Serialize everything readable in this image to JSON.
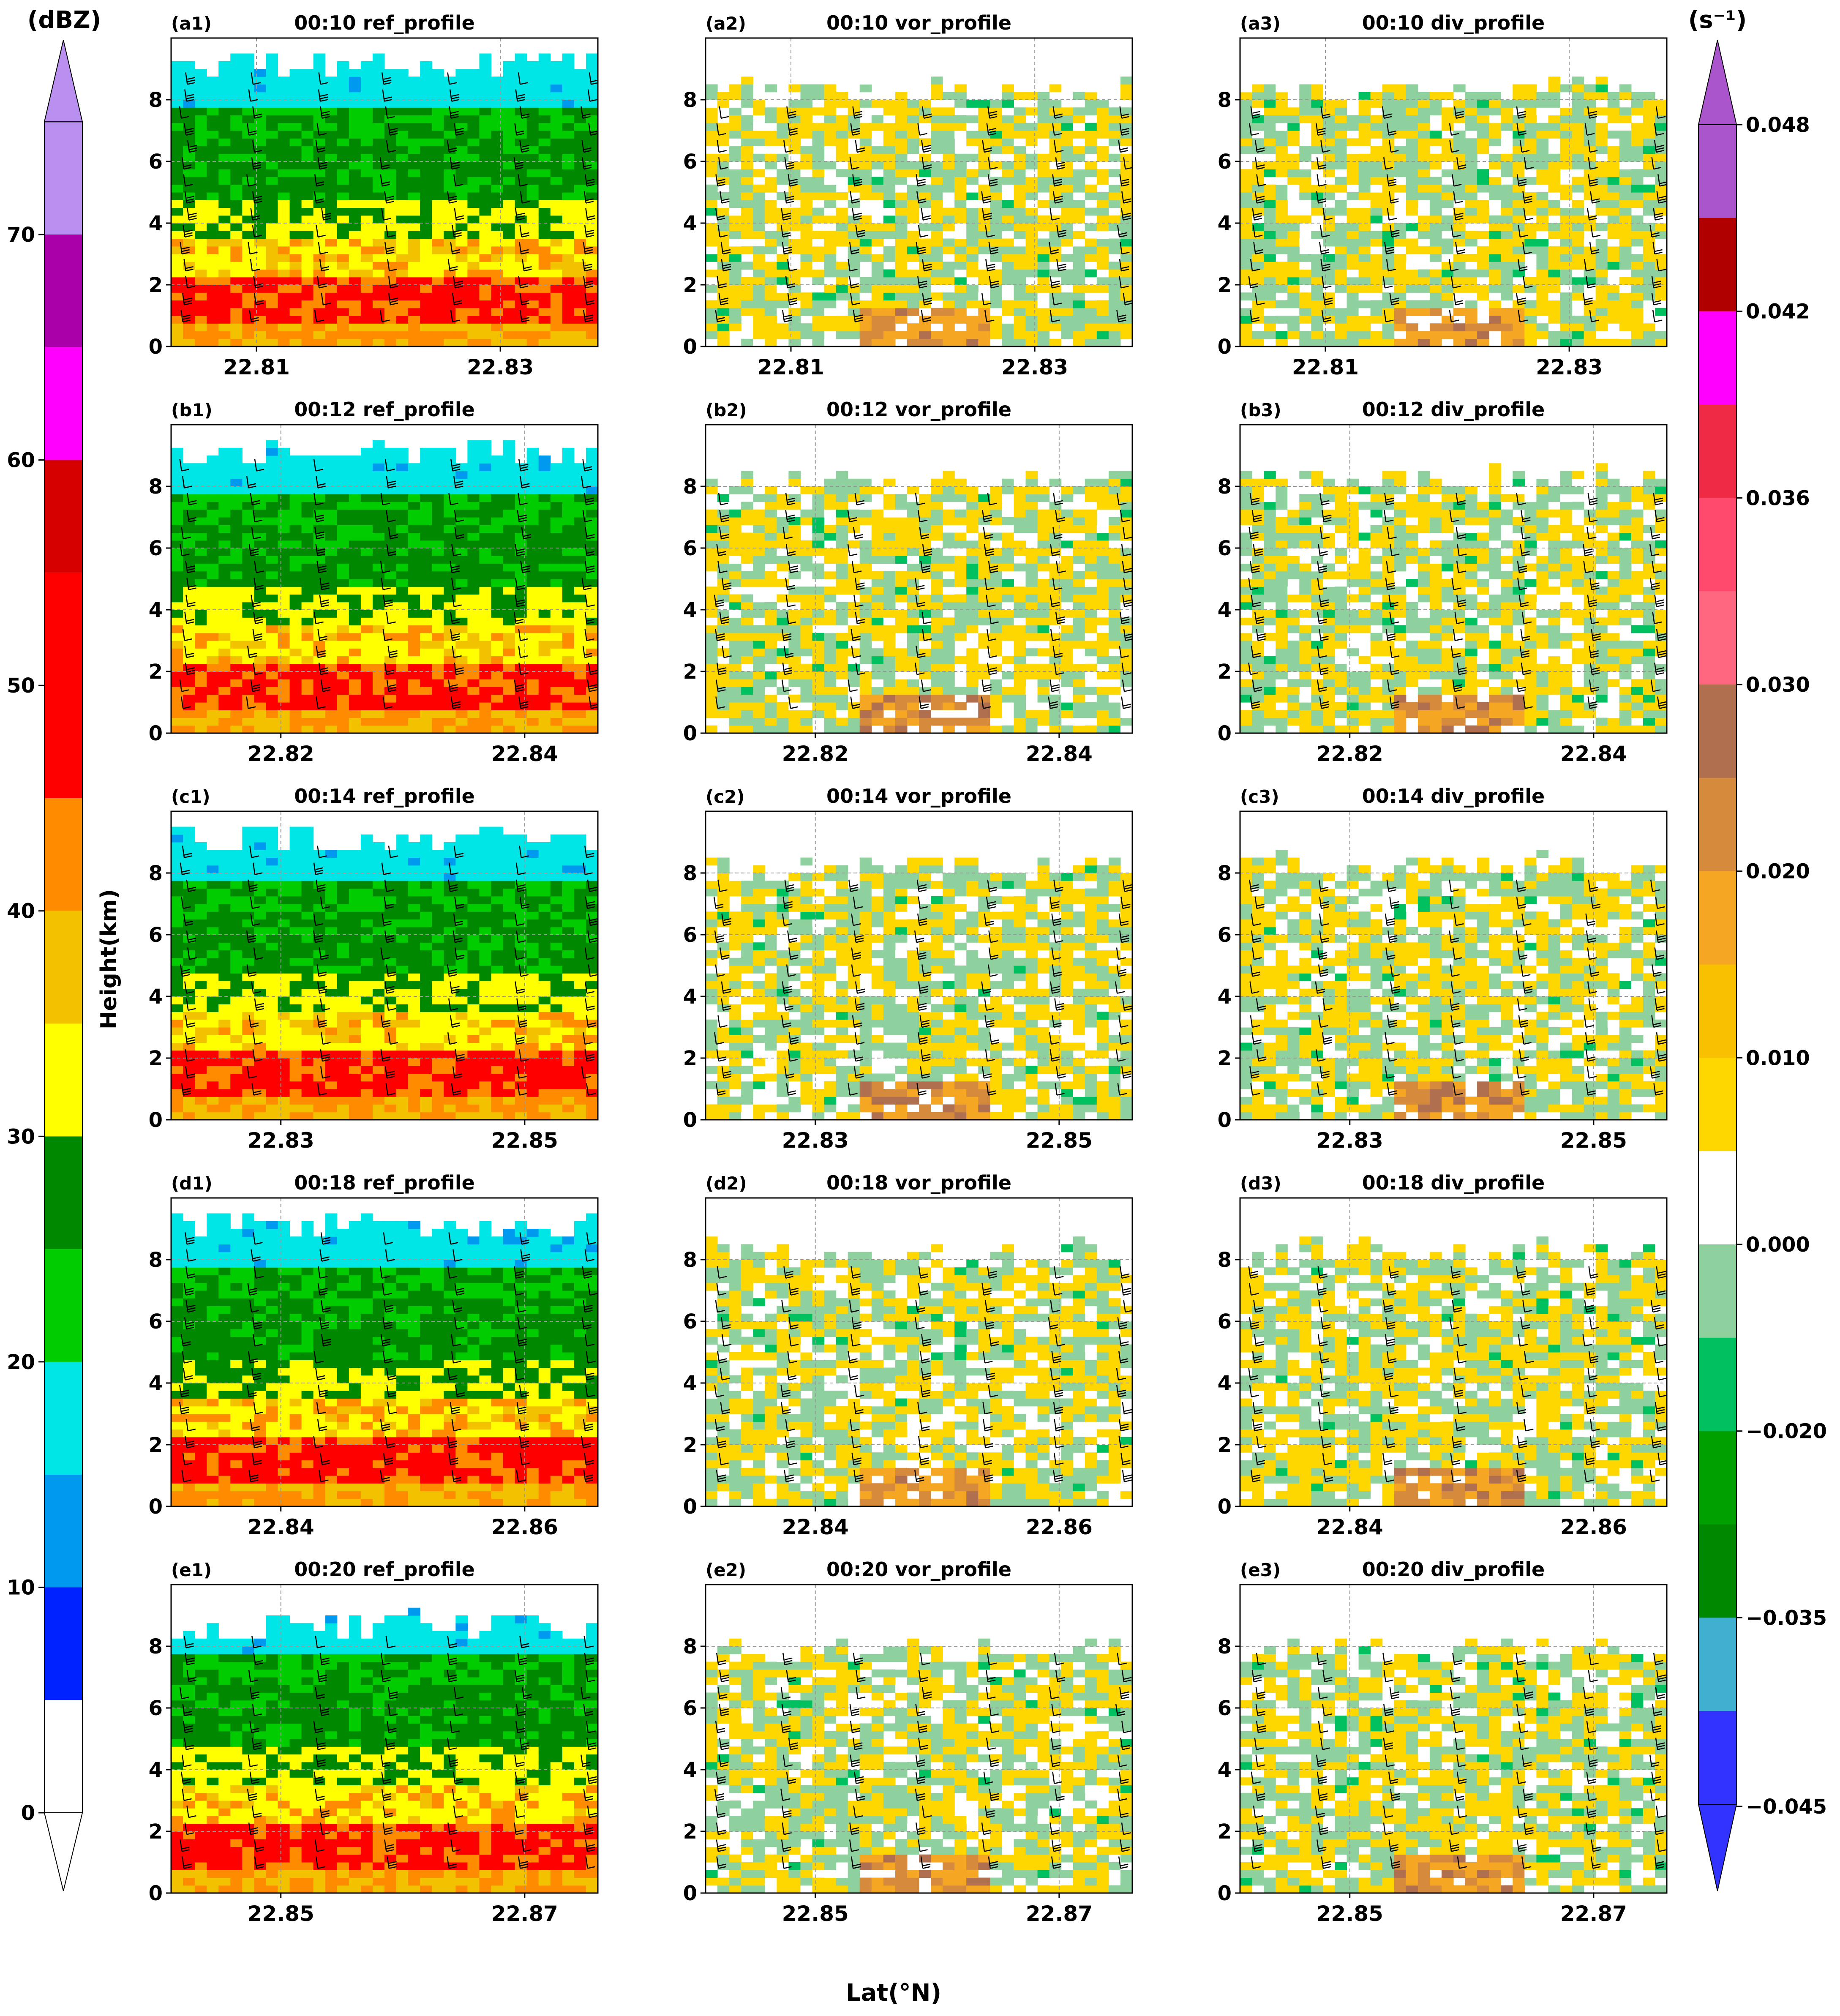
{
  "figure": {
    "xlabel": "Lat(°N)",
    "ylabel": "Height(km)",
    "left_colorbar": {
      "unit": "(dBZ)",
      "ticks": [
        "0",
        "10",
        "20",
        "30",
        "40",
        "50",
        "60",
        "70"
      ],
      "bins": [
        {
          "from": 0,
          "to": 5,
          "color": "#ffffff"
        },
        {
          "from": 5,
          "to": 10,
          "color": "#0022ff"
        },
        {
          "from": 10,
          "to": 15,
          "color": "#0099f0"
        },
        {
          "from": 15,
          "to": 20,
          "color": "#00e6e6"
        },
        {
          "from": 20,
          "to": 25,
          "color": "#00cc00"
        },
        {
          "from": 25,
          "to": 30,
          "color": "#008800"
        },
        {
          "from": 30,
          "to": 35,
          "color": "#ffff00"
        },
        {
          "from": 35,
          "to": 40,
          "color": "#f2c200"
        },
        {
          "from": 40,
          "to": 45,
          "color": "#ff8c00"
        },
        {
          "from": 45,
          "to": 55,
          "color": "#ff0000"
        },
        {
          "from": 55,
          "to": 60,
          "color": "#d60000"
        },
        {
          "from": 60,
          "to": 65,
          "color": "#ff00ff"
        },
        {
          "from": 65,
          "to": 70,
          "color": "#aa00aa"
        },
        {
          "from": 70,
          "to": 75,
          "color": "#b98ff0"
        }
      ],
      "extend_top_color": "#b98ff0",
      "extend_bottom_color": "#ffffff"
    },
    "right_colorbar": {
      "unit": "(s⁻¹)",
      "ticks": [
        "−0.045",
        "−0.035",
        "−0.020",
        "0.000",
        "0.010",
        "0.020",
        "0.030",
        "0.036",
        "0.042",
        "0.048"
      ],
      "colors": [
        "#3333ff",
        "#3fb0cf",
        "#008800",
        "#00a000",
        "#00c060",
        "#8fd19e",
        "#ffffff",
        "#ffd700",
        "#f8c000",
        "#f5a623",
        "#d68a3c",
        "#b07050",
        "#ff6680",
        "#ff4a6e",
        "#ee2a44",
        "#ff00ff",
        "#b00000",
        "#aa55cc"
      ],
      "extend_top_color": "#aa55cc",
      "extend_bottom_color": "#3333ff"
    }
  },
  "chart_data": [
    {
      "panel": "a1",
      "tag": "(a1)",
      "title": "00:10 ref_profile",
      "type": "heatmap",
      "field": "reflectivity",
      "xlim": [
        22.803,
        22.838
      ],
      "xticks": [
        "22.81",
        "22.83"
      ],
      "ylim": [
        0,
        10
      ],
      "yticks": [
        "0",
        "2",
        "4",
        "6",
        "8"
      ],
      "echo_top_km": 9.0
    },
    {
      "panel": "a2",
      "tag": "(a2)",
      "title": "00:10 vor_profile",
      "type": "heatmap",
      "field": "vorticity",
      "xlim": [
        22.803,
        22.838
      ],
      "xticks": [
        "22.81",
        "22.83"
      ],
      "ylim": [
        0,
        10
      ],
      "yticks": [
        "0",
        "2",
        "4",
        "6",
        "8"
      ],
      "echo_top_km": 8.2
    },
    {
      "panel": "a3",
      "tag": "(a3)",
      "title": "00:10 div_profile",
      "type": "heatmap",
      "field": "divergence",
      "xlim": [
        22.803,
        22.838
      ],
      "xticks": [
        "22.81",
        "22.83"
      ],
      "ylim": [
        0,
        10
      ],
      "yticks": [
        "0",
        "2",
        "4",
        "6",
        "8"
      ],
      "echo_top_km": 8.2
    },
    {
      "panel": "b1",
      "tag": "(b1)",
      "title": "00:12 ref_profile",
      "type": "heatmap",
      "field": "reflectivity",
      "xlim": [
        22.811,
        22.846
      ],
      "xticks": [
        "22.82",
        "22.84"
      ],
      "ylim": [
        0,
        10
      ],
      "yticks": [
        "0",
        "2",
        "4",
        "6",
        "8"
      ],
      "echo_top_km": 9.0
    },
    {
      "panel": "b2",
      "tag": "(b2)",
      "title": "00:12 vor_profile",
      "type": "heatmap",
      "field": "vorticity",
      "xlim": [
        22.811,
        22.846
      ],
      "xticks": [
        "22.82",
        "22.84"
      ],
      "ylim": [
        0,
        10
      ],
      "yticks": [
        "0",
        "2",
        "4",
        "6",
        "8"
      ],
      "echo_top_km": 8.1
    },
    {
      "panel": "b3",
      "tag": "(b3)",
      "title": "00:12 div_profile",
      "type": "heatmap",
      "field": "divergence",
      "xlim": [
        22.811,
        22.846
      ],
      "xticks": [
        "22.82",
        "22.84"
      ],
      "ylim": [
        0,
        10
      ],
      "yticks": [
        "0",
        "2",
        "4",
        "6",
        "8"
      ],
      "echo_top_km": 8.1
    },
    {
      "panel": "c1",
      "tag": "(c1)",
      "title": "00:14 ref_profile",
      "type": "heatmap",
      "field": "reflectivity",
      "xlim": [
        22.821,
        22.856
      ],
      "xticks": [
        "22.83",
        "22.85"
      ],
      "ylim": [
        0,
        10
      ],
      "yticks": [
        "0",
        "2",
        "4",
        "6",
        "8"
      ],
      "echo_top_km": 9.0
    },
    {
      "panel": "c2",
      "tag": "(c2)",
      "title": "00:14 vor_profile",
      "type": "heatmap",
      "field": "vorticity",
      "xlim": [
        22.821,
        22.856
      ],
      "xticks": [
        "22.83",
        "22.85"
      ],
      "ylim": [
        0,
        10
      ],
      "yticks": [
        "0",
        "2",
        "4",
        "6",
        "8"
      ],
      "echo_top_km": 8.1
    },
    {
      "panel": "c3",
      "tag": "(c3)",
      "title": "00:14 div_profile",
      "type": "heatmap",
      "field": "divergence",
      "xlim": [
        22.821,
        22.856
      ],
      "xticks": [
        "22.83",
        "22.85"
      ],
      "ylim": [
        0,
        10
      ],
      "yticks": [
        "0",
        "2",
        "4",
        "6",
        "8"
      ],
      "echo_top_km": 8.1
    },
    {
      "panel": "d1",
      "tag": "(d1)",
      "title": "00:18 ref_profile",
      "type": "heatmap",
      "field": "reflectivity",
      "xlim": [
        22.831,
        22.866
      ],
      "xticks": [
        "22.84",
        "22.86"
      ],
      "ylim": [
        0,
        10
      ],
      "yticks": [
        "0",
        "2",
        "4",
        "6",
        "8"
      ],
      "echo_top_km": 9.0
    },
    {
      "panel": "d2",
      "tag": "(d2)",
      "title": "00:18 vor_profile",
      "type": "heatmap",
      "field": "vorticity",
      "xlim": [
        22.831,
        22.866
      ],
      "xticks": [
        "22.84",
        "22.86"
      ],
      "ylim": [
        0,
        10
      ],
      "yticks": [
        "0",
        "2",
        "4",
        "6",
        "8"
      ],
      "echo_top_km": 8.1
    },
    {
      "panel": "d3",
      "tag": "(d3)",
      "title": "00:18 div_profile",
      "type": "heatmap",
      "field": "divergence",
      "xlim": [
        22.831,
        22.866
      ],
      "xticks": [
        "22.84",
        "22.86"
      ],
      "ylim": [
        0,
        10
      ],
      "yticks": [
        "0",
        "2",
        "4",
        "6",
        "8"
      ],
      "echo_top_km": 8.1
    },
    {
      "panel": "e1",
      "tag": "(e1)",
      "title": "00:20 ref_profile",
      "type": "heatmap",
      "field": "reflectivity",
      "xlim": [
        22.841,
        22.876
      ],
      "xticks": [
        "22.85",
        "22.87"
      ],
      "ylim": [
        0,
        10
      ],
      "yticks": [
        "0",
        "2",
        "4",
        "6",
        "8"
      ],
      "echo_top_km": 8.6
    },
    {
      "panel": "e2",
      "tag": "(e2)",
      "title": "00:20 vor_profile",
      "type": "heatmap",
      "field": "vorticity",
      "xlim": [
        22.841,
        22.876
      ],
      "xticks": [
        "22.85",
        "22.87"
      ],
      "ylim": [
        0,
        10
      ],
      "yticks": [
        "0",
        "2",
        "4",
        "6",
        "8"
      ],
      "echo_top_km": 7.8
    },
    {
      "panel": "e3",
      "tag": "(e3)",
      "title": "00:20 div_profile",
      "type": "heatmap",
      "field": "divergence",
      "xlim": [
        22.841,
        22.876
      ],
      "xticks": [
        "22.85",
        "22.87"
      ],
      "ylim": [
        0,
        10
      ],
      "yticks": [
        "0",
        "2",
        "4",
        "6",
        "8"
      ],
      "echo_top_km": 7.8
    }
  ]
}
